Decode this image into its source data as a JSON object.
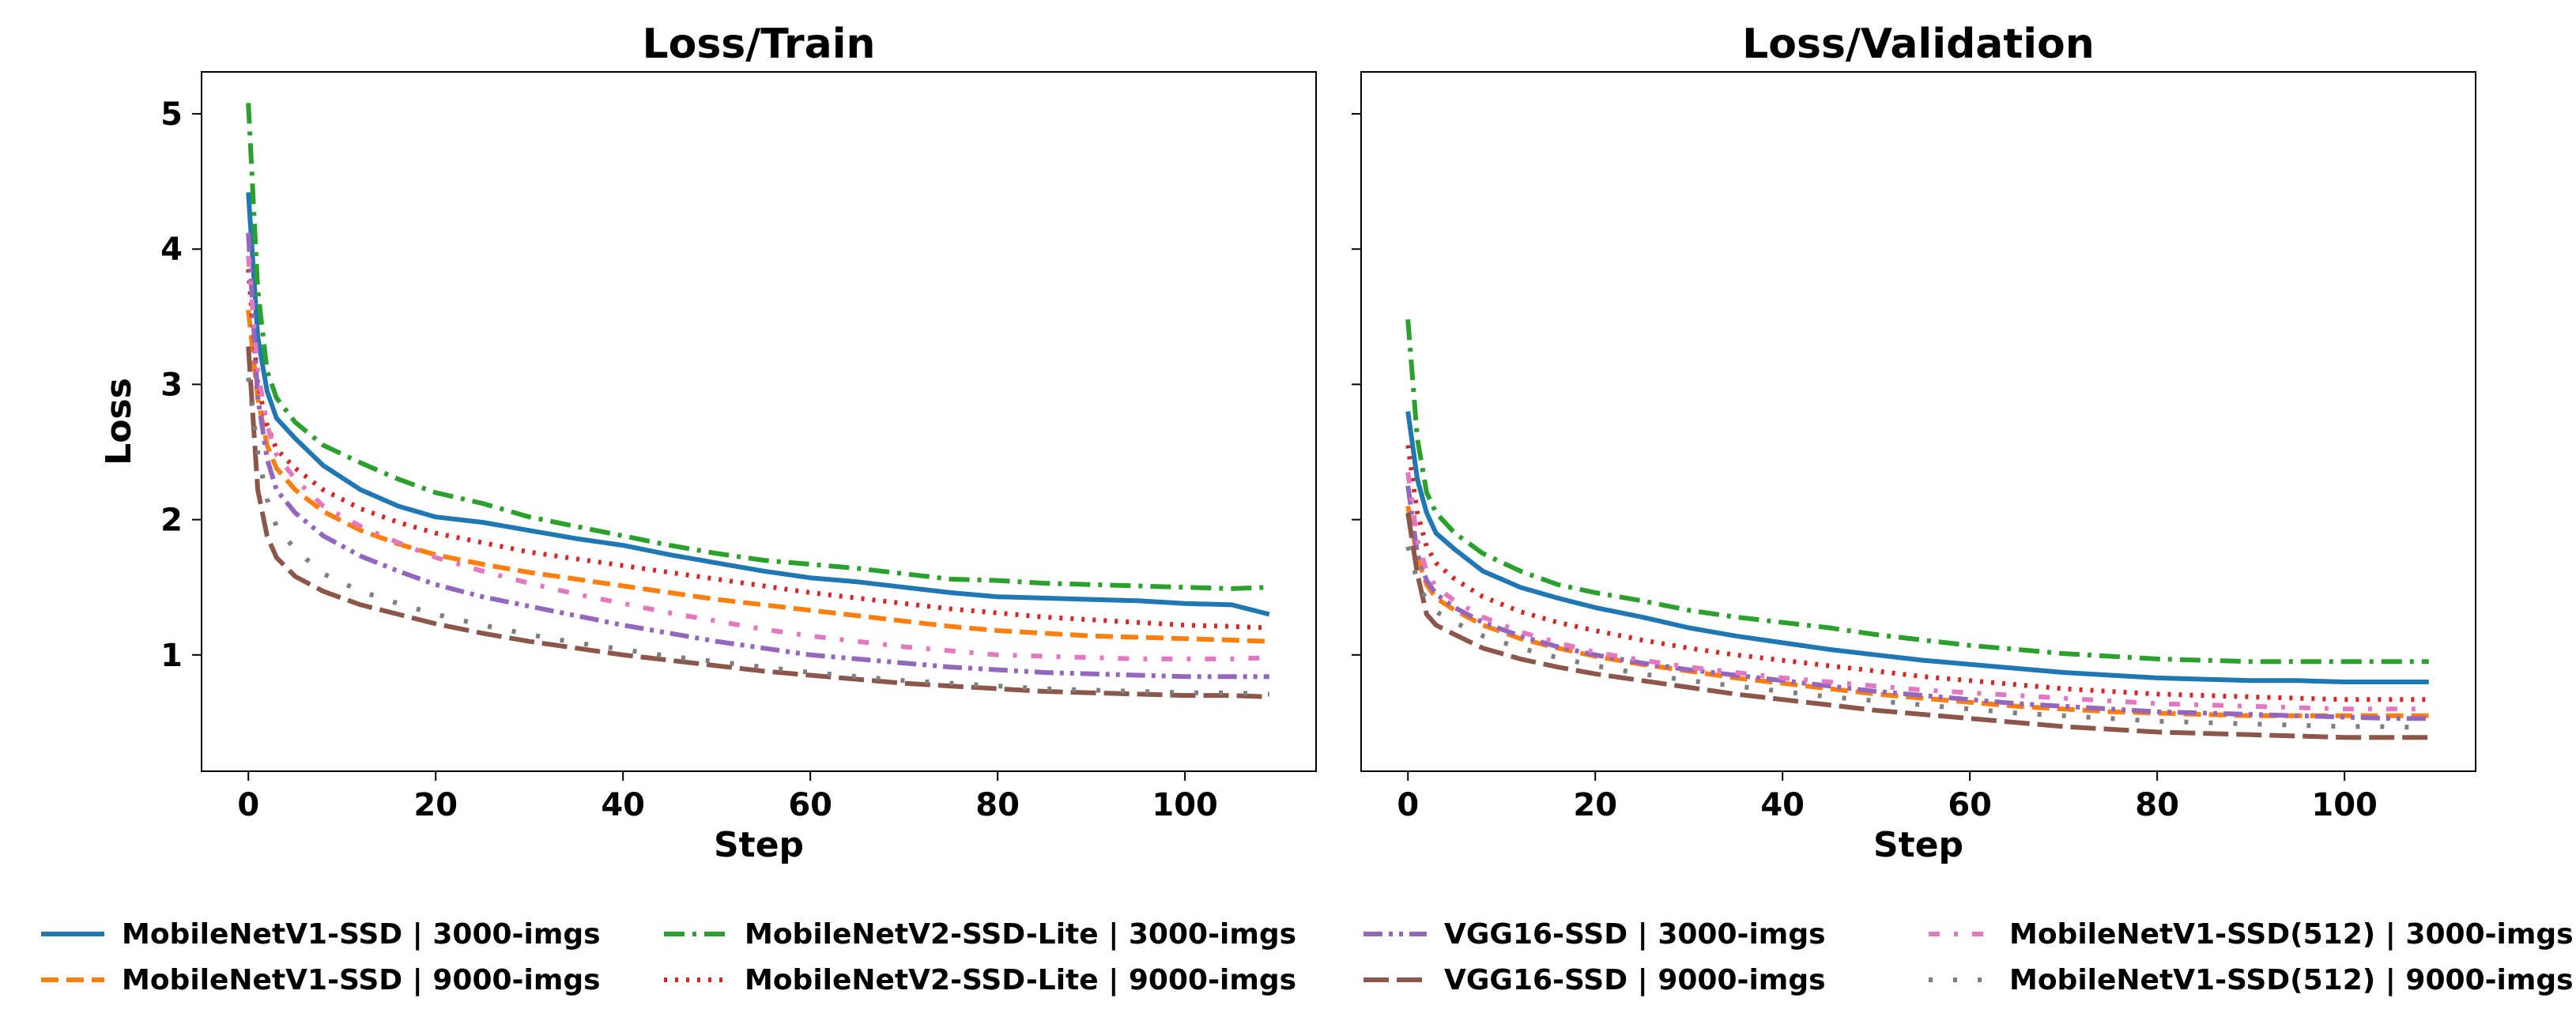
{
  "chart_data": [
    {
      "type": "line",
      "title": "Loss/Train",
      "xlabel": "Step",
      "ylabel": "Loss",
      "xlim": [
        -5,
        114
      ],
      "ylim": [
        0.14,
        5.31
      ],
      "xticks": [
        0,
        20,
        40,
        60,
        80,
        100
      ],
      "xtick_labels": [
        "0",
        "20",
        "40",
        "60",
        "80",
        "100"
      ],
      "yticks": [
        1,
        2,
        3,
        4,
        5
      ],
      "ytick_labels": [
        "1",
        "2",
        "3",
        "4",
        "5"
      ],
      "grid": false,
      "x": [
        0,
        1,
        2,
        3,
        5,
        8,
        12,
        16,
        20,
        25,
        30,
        35,
        40,
        45,
        50,
        55,
        60,
        65,
        70,
        75,
        80,
        85,
        90,
        95,
        100,
        105,
        109
      ],
      "series": [
        {
          "name": "MobileNetV1-SSD | 3000-imgs",
          "color": "#1f77b4",
          "dash": "solid",
          "values": [
            4.42,
            3.35,
            2.95,
            2.75,
            2.6,
            2.4,
            2.22,
            2.1,
            2.02,
            1.98,
            1.92,
            1.86,
            1.81,
            1.74,
            1.68,
            1.62,
            1.57,
            1.54,
            1.5,
            1.46,
            1.43,
            1.42,
            1.41,
            1.4,
            1.38,
            1.37,
            1.3
          ]
        },
        {
          "name": "MobileNetV1-SSD | 9000-imgs",
          "color": "#ff7f0e",
          "dash": "dashed",
          "values": [
            3.55,
            2.9,
            2.55,
            2.38,
            2.22,
            2.06,
            1.92,
            1.82,
            1.74,
            1.67,
            1.61,
            1.56,
            1.51,
            1.46,
            1.41,
            1.37,
            1.33,
            1.29,
            1.25,
            1.21,
            1.18,
            1.16,
            1.14,
            1.13,
            1.12,
            1.11,
            1.1
          ]
        },
        {
          "name": "MobileNetV2-SSD-Lite | 3000-imgs",
          "color": "#2ca02c",
          "dash": "dashdot",
          "values": [
            5.08,
            3.7,
            3.1,
            2.9,
            2.72,
            2.55,
            2.42,
            2.3,
            2.2,
            2.12,
            2.02,
            1.95,
            1.88,
            1.81,
            1.75,
            1.7,
            1.67,
            1.64,
            1.6,
            1.56,
            1.55,
            1.53,
            1.52,
            1.51,
            1.5,
            1.49,
            1.5
          ]
        },
        {
          "name": "MobileNetV2-SSD-Lite | 9000-imgs",
          "color": "#d62728",
          "dash": "dotted",
          "values": [
            3.85,
            3.0,
            2.7,
            2.52,
            2.38,
            2.22,
            2.08,
            1.98,
            1.9,
            1.83,
            1.76,
            1.71,
            1.66,
            1.61,
            1.56,
            1.51,
            1.46,
            1.42,
            1.38,
            1.34,
            1.31,
            1.28,
            1.26,
            1.24,
            1.22,
            1.21,
            1.2
          ]
        },
        {
          "name": "VGG16-SSD | 3000-imgs",
          "color": "#9467bd",
          "dash": "dashdotdot",
          "values": [
            4.12,
            2.9,
            2.45,
            2.22,
            2.05,
            1.88,
            1.73,
            1.62,
            1.52,
            1.43,
            1.36,
            1.29,
            1.22,
            1.16,
            1.1,
            1.05,
            1.0,
            0.97,
            0.94,
            0.91,
            0.89,
            0.87,
            0.86,
            0.85,
            0.84,
            0.84,
            0.84
          ]
        },
        {
          "name": "VGG16-SSD | 9000-imgs",
          "color": "#8c564b",
          "dash": "longdash",
          "values": [
            3.28,
            2.22,
            1.88,
            1.72,
            1.58,
            1.47,
            1.37,
            1.3,
            1.23,
            1.16,
            1.1,
            1.05,
            1.0,
            0.96,
            0.92,
            0.88,
            0.85,
            0.82,
            0.79,
            0.77,
            0.75,
            0.73,
            0.72,
            0.71,
            0.7,
            0.7,
            0.69
          ]
        },
        {
          "name": "MobileNetV1-SSD(512) | 3000-imgs",
          "color": "#e377c2",
          "dash": "loosedashdot",
          "values": [
            3.95,
            3.1,
            2.7,
            2.48,
            2.3,
            2.1,
            1.95,
            1.83,
            1.72,
            1.62,
            1.53,
            1.45,
            1.38,
            1.31,
            1.25,
            1.19,
            1.14,
            1.1,
            1.06,
            1.03,
            1.0,
            0.99,
            0.98,
            0.97,
            0.97,
            0.97,
            0.98
          ]
        },
        {
          "name": "MobileNetV1-SSD(512) | 9000-imgs",
          "color": "#7f7f7f",
          "dash": "sparsedot",
          "values": [
            3.05,
            2.5,
            2.15,
            1.95,
            1.78,
            1.6,
            1.47,
            1.38,
            1.3,
            1.22,
            1.15,
            1.09,
            1.04,
            0.99,
            0.95,
            0.91,
            0.87,
            0.84,
            0.81,
            0.79,
            0.77,
            0.75,
            0.74,
            0.73,
            0.72,
            0.72,
            0.71
          ]
        }
      ]
    },
    {
      "type": "line",
      "title": "Loss/Validation",
      "xlabel": "Step",
      "ylabel": "",
      "xlim": [
        -5,
        114
      ],
      "ylim": [
        0.14,
        5.31
      ],
      "xticks": [
        0,
        20,
        40,
        60,
        80,
        100
      ],
      "xtick_labels": [
        "0",
        "20",
        "40",
        "60",
        "80",
        "100"
      ],
      "yticks": [
        1,
        2,
        3,
        4,
        5
      ],
      "ytick_labels": [],
      "grid": false,
      "x": [
        0,
        1,
        2,
        3,
        5,
        8,
        12,
        16,
        20,
        25,
        30,
        35,
        40,
        45,
        50,
        55,
        60,
        65,
        70,
        75,
        80,
        85,
        90,
        95,
        100,
        105,
        109
      ],
      "series": [
        {
          "name": "MobileNetV1-SSD | 3000-imgs",
          "color": "#1f77b4",
          "dash": "solid",
          "values": [
            2.8,
            2.3,
            2.05,
            1.9,
            1.78,
            1.62,
            1.5,
            1.42,
            1.35,
            1.28,
            1.2,
            1.14,
            1.09,
            1.04,
            1.0,
            0.96,
            0.93,
            0.9,
            0.87,
            0.85,
            0.83,
            0.82,
            0.81,
            0.81,
            0.8,
            0.8,
            0.8
          ]
        },
        {
          "name": "MobileNetV1-SSD | 9000-imgs",
          "color": "#ff7f0e",
          "dash": "dashed",
          "values": [
            2.1,
            1.72,
            1.52,
            1.42,
            1.33,
            1.22,
            1.12,
            1.05,
            0.99,
            0.93,
            0.88,
            0.83,
            0.79,
            0.75,
            0.71,
            0.68,
            0.65,
            0.62,
            0.6,
            0.58,
            0.57,
            0.56,
            0.55,
            0.55,
            0.55,
            0.55,
            0.55
          ]
        },
        {
          "name": "MobileNetV2-SSD-Lite | 3000-imgs",
          "color": "#2ca02c",
          "dash": "dashdot",
          "values": [
            3.48,
            2.6,
            2.2,
            2.05,
            1.9,
            1.75,
            1.62,
            1.52,
            1.46,
            1.4,
            1.33,
            1.28,
            1.24,
            1.2,
            1.15,
            1.11,
            1.07,
            1.04,
            1.01,
            0.99,
            0.97,
            0.96,
            0.95,
            0.95,
            0.95,
            0.95,
            0.95
          ]
        },
        {
          "name": "MobileNetV2-SSD-Lite | 9000-imgs",
          "color": "#d62728",
          "dash": "dotted",
          "values": [
            2.55,
            2.05,
            1.8,
            1.68,
            1.56,
            1.43,
            1.32,
            1.24,
            1.18,
            1.11,
            1.05,
            1.0,
            0.96,
            0.92,
            0.88,
            0.84,
            0.81,
            0.78,
            0.75,
            0.73,
            0.71,
            0.7,
            0.69,
            0.68,
            0.67,
            0.67,
            0.67
          ]
        },
        {
          "name": "VGG16-SSD | 3000-imgs",
          "color": "#9467bd",
          "dash": "dashdotdot",
          "values": [
            2.25,
            1.75,
            1.55,
            1.45,
            1.35,
            1.24,
            1.14,
            1.06,
            1.0,
            0.94,
            0.89,
            0.85,
            0.81,
            0.77,
            0.73,
            0.7,
            0.67,
            0.64,
            0.62,
            0.6,
            0.58,
            0.57,
            0.56,
            0.55,
            0.54,
            0.53,
            0.53
          ]
        },
        {
          "name": "VGG16-SSD | 9000-imgs",
          "color": "#8c564b",
          "dash": "longdash",
          "values": [
            2.05,
            1.6,
            1.3,
            1.22,
            1.15,
            1.05,
            0.97,
            0.91,
            0.86,
            0.81,
            0.76,
            0.71,
            0.67,
            0.63,
            0.59,
            0.56,
            0.53,
            0.5,
            0.47,
            0.45,
            0.43,
            0.42,
            0.41,
            0.4,
            0.39,
            0.39,
            0.39
          ]
        },
        {
          "name": "MobileNetV1-SSD(512) | 3000-imgs",
          "color": "#e377c2",
          "dash": "loosedashdot",
          "values": [
            2.35,
            1.85,
            1.62,
            1.5,
            1.4,
            1.28,
            1.17,
            1.09,
            1.02,
            0.96,
            0.91,
            0.87,
            0.83,
            0.8,
            0.77,
            0.74,
            0.72,
            0.7,
            0.68,
            0.66,
            0.64,
            0.63,
            0.62,
            0.61,
            0.6,
            0.6,
            0.6
          ]
        },
        {
          "name": "MobileNetV1-SSD(512) | 9000-imgs",
          "color": "#7f7f7f",
          "dash": "sparsedot",
          "values": [
            1.8,
            1.55,
            1.4,
            1.32,
            1.24,
            1.14,
            1.05,
            0.98,
            0.92,
            0.86,
            0.81,
            0.77,
            0.73,
            0.69,
            0.66,
            0.63,
            0.6,
            0.57,
            0.55,
            0.53,
            0.51,
            0.5,
            0.49,
            0.48,
            0.47,
            0.47,
            0.46
          ]
        }
      ]
    }
  ]
}
